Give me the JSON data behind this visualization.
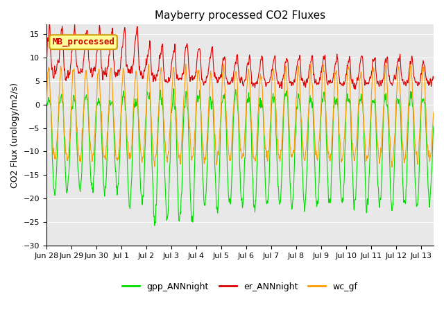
{
  "title": "Mayberry processed CO2 Fluxes",
  "ylabel": "CO2 Flux (urology/m2/s)",
  "ylim": [
    -30,
    17
  ],
  "yticks": [
    -30,
    -25,
    -20,
    -15,
    -10,
    -5,
    0,
    5,
    10,
    15
  ],
  "xlabel_ticks": [
    "Jun 28",
    "Jun 29",
    "Jun 30",
    "Jul 1",
    "Jul 2",
    "Jul 3",
    "Jul 4",
    "Jul 5",
    "Jul 6",
    "Jul 7",
    "Jul 8",
    "Jul 9",
    "Jul 10",
    "Jul 11",
    "Jul 12",
    "Jul 13"
  ],
  "legend_labels": [
    "gpp_ANNnight",
    "er_ANNnight",
    "wc_gf"
  ],
  "legend_colors": [
    "#00dd00",
    "#dd0000",
    "#ff9900"
  ],
  "line_colors": [
    "#00dd00",
    "#dd0000",
    "#ff9900"
  ],
  "annotation_text": "MB_processed",
  "annotation_color": "#cc0000",
  "annotation_bg": "#ffff99",
  "annotation_border": "#cc9900",
  "bg_color": "#ffffff",
  "plot_bg_color": "#e8e8e8",
  "grid_color": "#ffffff",
  "title_fontsize": 11,
  "axis_fontsize": 9,
  "tick_fontsize": 8,
  "legend_fontsize": 9,
  "n_days": 15.5,
  "points_per_half_day": 48
}
